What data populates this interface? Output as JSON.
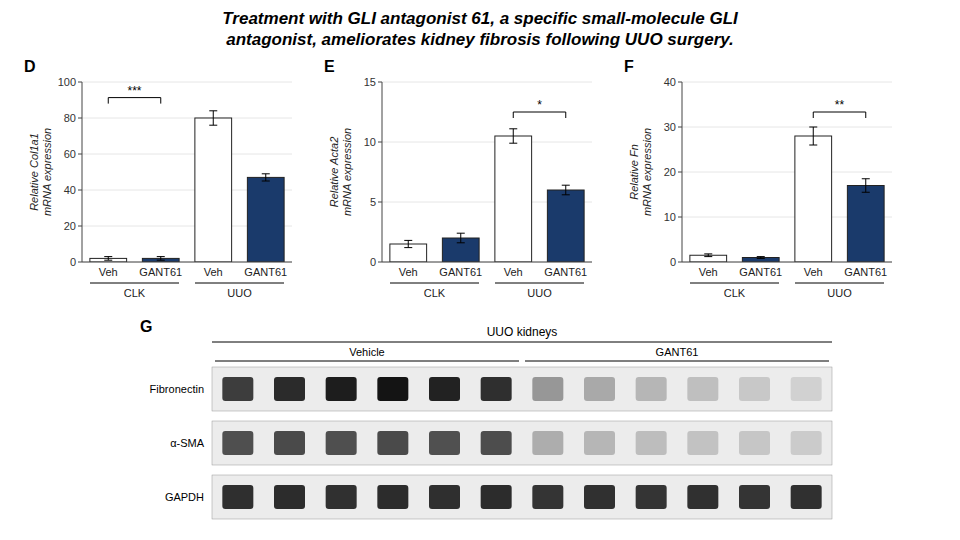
{
  "title": "Treatment with GLI antagonist 61, a specific small-molecule GLI\nantagonist, ameliorates kidney fibrosis following UUO surgery.",
  "chart_data": [
    {
      "type": "bar",
      "annotations": [
        {
          "text": "D"
        },
        {
          "text": "***",
          "category": "CLK",
          "y": 88
        }
      ],
      "y_label": "Relative Col1a1\nmRNA expression",
      "categories": [
        "CLK",
        "UUO"
      ],
      "series": [
        {
          "name": "Veh",
          "color": "white",
          "values": [
            2,
            80
          ],
          "errors": [
            1,
            4
          ]
        },
        {
          "name": "GANT61",
          "color": "#1a3a6b",
          "values": [
            2,
            47
          ],
          "errors": [
            1,
            2
          ]
        }
      ],
      "ylim": [
        0,
        100
      ],
      "yticks": [
        0,
        20,
        40,
        60,
        80,
        100
      ]
    },
    {
      "type": "bar",
      "annotations": [
        {
          "text": "E"
        },
        {
          "text": "*",
          "category": "UUO",
          "y": 12
        }
      ],
      "y_label": "Relative Acta2\nmRNA expression",
      "categories": [
        "CLK",
        "UUO"
      ],
      "series": [
        {
          "name": "Veh",
          "color": "white",
          "values": [
            1.5,
            10.5
          ],
          "errors": [
            0.3,
            0.6
          ]
        },
        {
          "name": "GANT61",
          "color": "#1a3a6b",
          "values": [
            2.0,
            6.0
          ],
          "errors": [
            0.4,
            0.4
          ]
        }
      ],
      "ylim": [
        0,
        15
      ],
      "yticks": [
        0,
        5,
        10,
        15
      ]
    },
    {
      "type": "bar",
      "annotations": [
        {
          "text": "F"
        },
        {
          "text": "**",
          "category": "UUO",
          "y": 32
        }
      ],
      "y_label": "Relative Fn\nmRNA expression",
      "categories": [
        "CLK",
        "UUO"
      ],
      "series": [
        {
          "name": "Veh",
          "color": "white",
          "values": [
            1.5,
            28
          ],
          "errors": [
            0.3,
            2.0
          ]
        },
        {
          "name": "GANT61",
          "color": "#1a3a6b",
          "values": [
            1.0,
            17
          ],
          "errors": [
            0.2,
            1.5
          ]
        }
      ],
      "ylim": [
        0,
        40
      ],
      "yticks": [
        0,
        10,
        20,
        30,
        40
      ]
    },
    {
      "type": "blot",
      "title": "UUO kidneys",
      "annotations": [
        {
          "text": "G"
        }
      ],
      "rows": [
        "Fibronectin",
        "α-SMA",
        "GAPDH"
      ],
      "zlim": [
        0,
        255
      ],
      "series": [
        {
          "name": "Vehicle",
          "cells": [
            [
              210,
              230,
              245,
              255,
              240,
              225
            ],
            [
              190,
              195,
              190,
              195,
              188,
              192
            ],
            [
              225,
              228,
              224,
              228,
              225,
              228
            ]
          ]
        },
        {
          "name": "GANT61",
          "cells": [
            [
              110,
              90,
              75,
              65,
              55,
              45
            ],
            [
              85,
              75,
              68,
              62,
              58,
              52
            ],
            [
              220,
              224,
              220,
              224,
              220,
              224
            ]
          ]
        }
      ]
    }
  ]
}
